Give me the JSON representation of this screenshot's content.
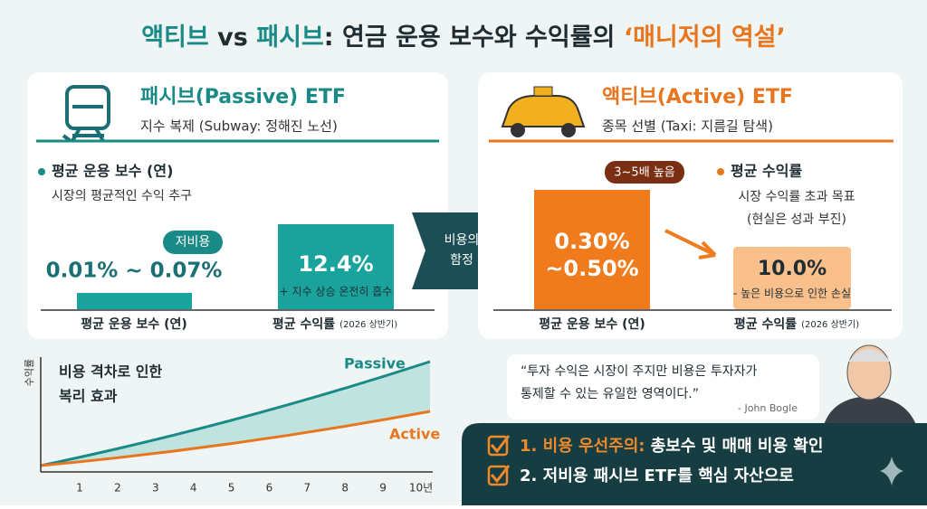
{
  "title": {
    "active": "액티브",
    "vs": "vs",
    "passive": "패시브",
    "rest": ": 연금 운용 보수와 수익률의",
    "highlight": "‘매니저의 역설’"
  },
  "passive_card": {
    "title": "패시브(Passive) ETF",
    "subtitle": "지수 복제 (Subway: 정해진 노선)",
    "bullet": "평균 운용 보수 (연)",
    "desc": "시장의 평균적인 수익 추구",
    "badge": "저비용",
    "fee": "0.01% ~ 0.07%",
    "return": "12.4%",
    "return_note": "+ 지수 상승 온전히 흡수",
    "label_fee": "평균 운용 보수 (연)",
    "label_return": "평균 수익률",
    "label_period": "(2026 상반기)"
  },
  "trap": [
    "비용의",
    "함정"
  ],
  "active_card": {
    "title": "액티브(Active) ETF",
    "subtitle": "종목 선별 (Taxi: 지름길 탐색)",
    "badge": "3~5배 높음",
    "fee": [
      "0.30%",
      "~0.50%"
    ],
    "bullet": "평균 수익률",
    "desc": [
      "시장 수익률 초과 목표",
      "(현실은 성과 부진)"
    ],
    "return": "10.0%",
    "return_note": "- 높은 비용으로 인한 손실",
    "label_fee": "평균 운용 보수 (연)",
    "label_return": "평균 수익률",
    "label_period": "(2026 상반기)"
  },
  "compound": {
    "title": [
      "비용 격차로 인한",
      "복리 효과"
    ],
    "y_label": "수익률",
    "passive": "Passive",
    "active": "Active",
    "x": [
      "1",
      "2",
      "3",
      "4",
      "5",
      "6",
      "7",
      "8",
      "9",
      "10년"
    ]
  },
  "quote": {
    "text": [
      "“투자 수익은 시장이 주지만 비용은 투자자가",
      "통제할 수 있는 유일한 영역이다.”"
    ],
    "author": "- John Bogle"
  },
  "checklist": [
    {
      "lead": "1. 비용 우선주의:",
      "text": "총보수 및 매매 비용 확인"
    },
    {
      "text": "2. 저비용 패시브 ETF를 핵심 자산으로"
    }
  ]
}
